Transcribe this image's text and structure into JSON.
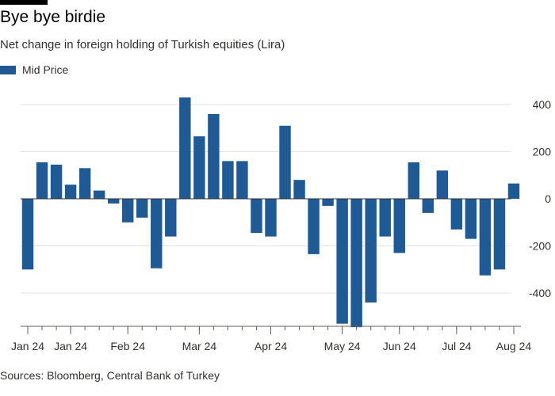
{
  "header": {
    "title": "Bye bye birdie",
    "subtitle": "Net change in foreign holding of Turkish equities (Lira)"
  },
  "footer": {
    "source": "Sources: Bloomberg, Central Bank of Turkey"
  },
  "colors": {
    "bar": "#1f5a94",
    "grid": "#e6e3df",
    "zero": "#33302e",
    "axis": "#66605c"
  },
  "chart_data": {
    "type": "bar",
    "title": "Bye bye birdie",
    "subtitle": "Net change in foreign holding of Turkish equities (Lira)",
    "legend": {
      "position": "top-left",
      "entries": [
        "Mid Price"
      ]
    },
    "series": [
      {
        "name": "Mid Price",
        "values": [
          -300,
          155,
          145,
          60,
          130,
          35,
          -20,
          -100,
          -80,
          -295,
          -160,
          430,
          265,
          360,
          160,
          160,
          -145,
          -160,
          310,
          80,
          -235,
          -30,
          -530,
          -545,
          -440,
          -160,
          -230,
          155,
          -60,
          120,
          -130,
          -170,
          -325,
          -300,
          65
        ]
      }
    ],
    "x_tick_labels": [
      {
        "bar_index": 0,
        "label": "Jan 24"
      },
      {
        "bar_index": 3,
        "label": "Jan 24"
      },
      {
        "bar_index": 7,
        "label": "Feb 24"
      },
      {
        "bar_index": 12,
        "label": "Mar 24"
      },
      {
        "bar_index": 17,
        "label": "Apr 24"
      },
      {
        "bar_index": 22,
        "label": "May 24"
      },
      {
        "bar_index": 26,
        "label": "Jun 24"
      },
      {
        "bar_index": 30,
        "label": "Jul 24"
      },
      {
        "bar_index": 34,
        "label": "Aug 24"
      }
    ],
    "y_ticks": [
      400,
      200,
      0,
      -200,
      -400
    ],
    "y_tick_labels": [
      "400",
      "200",
      "0",
      "-200",
      "-400"
    ],
    "ylim": [
      -545,
      430
    ],
    "y_axis_side": "right",
    "grid": true
  }
}
